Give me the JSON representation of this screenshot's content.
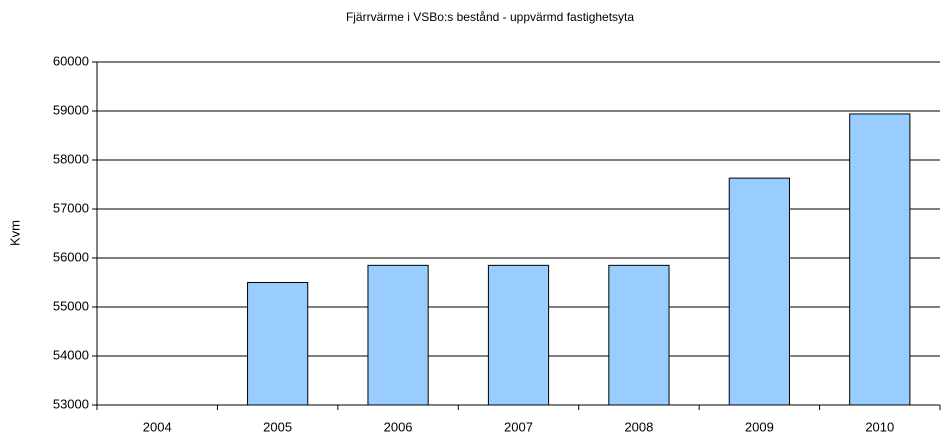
{
  "chart_data": {
    "type": "bar",
    "title": "Fjärrvärme i VSBo:s bestånd - uppvärmd fastighetsyta",
    "y_label": "Kvm",
    "categories": [
      "2004",
      "2005",
      "2006",
      "2007",
      "2008",
      "2009",
      "2010"
    ],
    "values": [
      null,
      55500,
      55850,
      55850,
      55850,
      57630,
      58940
    ],
    "color": "#99ccff",
    "ylim": [
      53000,
      60000
    ],
    "yticks": [
      53000,
      54000,
      55000,
      56000,
      57000,
      58000,
      59000,
      60000
    ],
    "grid": true
  }
}
